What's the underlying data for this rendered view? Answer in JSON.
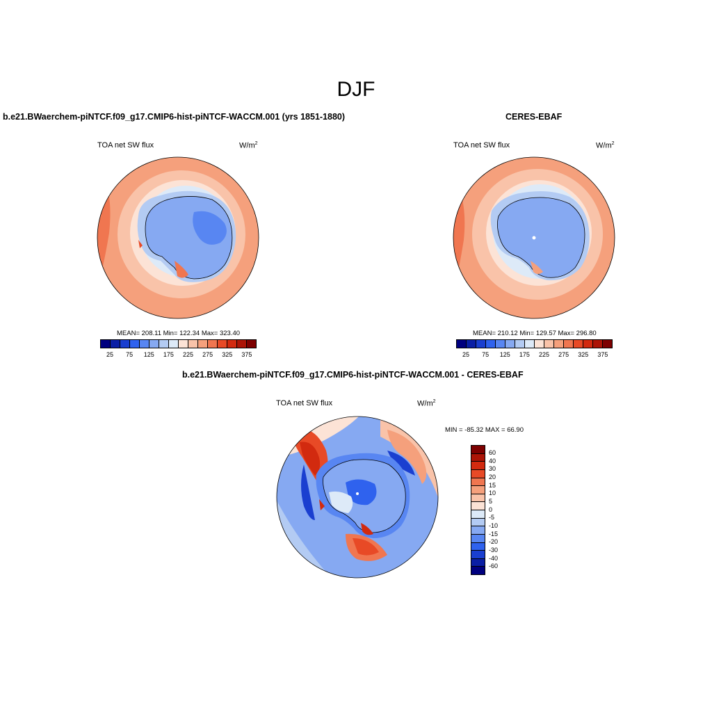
{
  "figure_title": "DJF",
  "panels": [
    {
      "title": "b.e21.BWaerchem-piNTCF.f09_g17.CMIP6-hist-piNTCF-WACCM.001 (yrs 1851-1880)",
      "left_label": "TOA net SW flux",
      "units": "W/m",
      "units_exp": "2",
      "stats": "MEAN= 208.11   Min= 122.34   Max= 323.40"
    },
    {
      "title": "CERES-EBAF",
      "left_label": "TOA net SW flux",
      "units": "W/m",
      "units_exp": "2",
      "stats": "MEAN= 210.12   Min= 129.57   Max= 296.80"
    },
    {
      "title": "b.e21.BWaerchem-piNTCF.f09_g17.CMIP6-hist-piNTCF-WACCM.001 - CERES-EBAF",
      "left_label": "TOA net SW flux",
      "units": "W/m",
      "units_exp": "2",
      "stats": "MIN = -85.32 MAX =  66.90"
    }
  ],
  "colorbar_abs": {
    "colors": [
      "#00007f",
      "#0a1fa5",
      "#1a3fd0",
      "#2f62ee",
      "#5886f2",
      "#86a9f2",
      "#b3cbf3",
      "#ddeaf8",
      "#fce3d6",
      "#f9c3a9",
      "#f5a07c",
      "#f07650",
      "#e84a26",
      "#d22a0f",
      "#ac1406",
      "#7d0000"
    ],
    "tick_labels": [
      "25",
      "75",
      "125",
      "175",
      "225",
      "275",
      "325",
      "375"
    ]
  },
  "colorbar_diff": {
    "colors_top_to_bottom": [
      "#7d0000",
      "#ac1406",
      "#d22a0f",
      "#e84a26",
      "#f07650",
      "#f5a07c",
      "#f9c3a9",
      "#fce3d6",
      "#ddeaf8",
      "#b3cbf3",
      "#86a9f2",
      "#5886f2",
      "#2f62ee",
      "#1a3fd0",
      "#0a1fa5",
      "#00007f"
    ],
    "tick_labels": [
      "60",
      "40",
      "30",
      "20",
      "15",
      "10",
      "5",
      "0",
      "-5",
      "-10",
      "-15",
      "-20",
      "-30",
      "-40",
      "-60"
    ]
  }
}
